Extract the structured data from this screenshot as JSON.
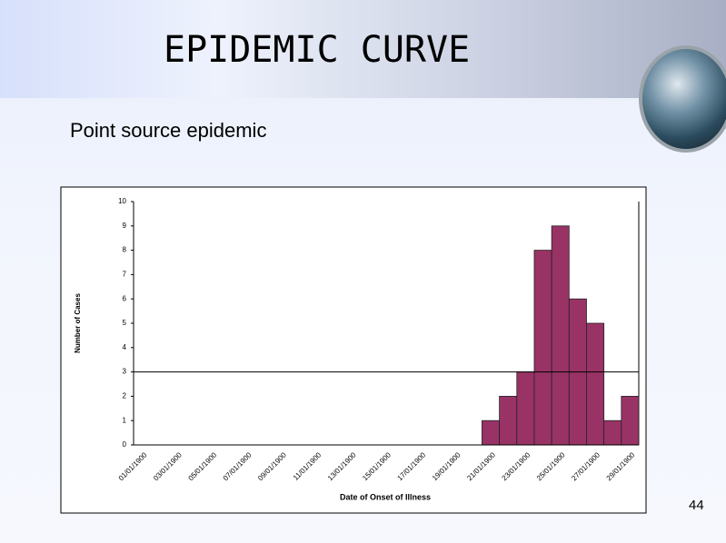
{
  "slide": {
    "title": "EPIDEMIC CURVE",
    "subtitle": "Point source epidemic",
    "page_number": "44"
  },
  "chart_data": {
    "type": "bar",
    "x_label": "Date of Onset of Illness",
    "y_label": "Number of Cases",
    "categories": [
      "01/01/1900",
      null,
      "03/01/1900",
      null,
      "05/01/1900",
      null,
      "07/01/1900",
      null,
      "09/01/1900",
      null,
      "11/01/1900",
      null,
      "13/01/1900",
      null,
      "15/01/1900",
      null,
      "17/01/1900",
      null,
      "19/01/1900",
      null,
      "21/01/1900",
      null,
      "23/01/1900",
      null,
      "25/01/1900",
      null,
      "27/01/1900",
      null,
      "29/01/1900"
    ],
    "values": [
      0,
      0,
      0,
      0,
      0,
      0,
      0,
      0,
      0,
      0,
      0,
      0,
      0,
      0,
      0,
      0,
      0,
      0,
      0,
      0,
      1,
      2,
      3,
      8,
      9,
      6,
      5,
      1,
      2
    ],
    "color": "#993366",
    "ylim": [
      0,
      10
    ],
    "yticks": [
      0,
      1,
      2,
      3,
      4,
      5,
      6,
      7,
      8,
      9,
      10
    ],
    "reference_line": 3
  }
}
